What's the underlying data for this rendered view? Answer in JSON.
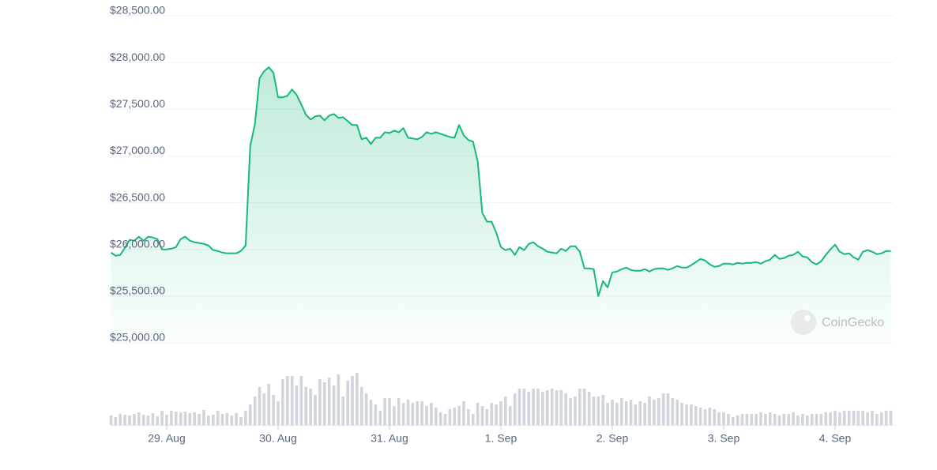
{
  "chart_data": {
    "type": "line",
    "color": "#16b978",
    "volume_color": "#d1d4dc",
    "grid": true,
    "watermark": "CoinGecko",
    "xlim": [
      -12,
      156
    ],
    "ylim": [
      25000,
      28500
    ],
    "volume_lim": [
      0,
      100
    ],
    "yticks": [
      {
        "value": 25000,
        "label": "$25,000.00"
      },
      {
        "value": 25500,
        "label": "$25,500.00"
      },
      {
        "value": 26000,
        "label": "$26,000.00"
      },
      {
        "value": 26500,
        "label": "$26,500.00"
      },
      {
        "value": 27000,
        "label": "$27,000.00"
      },
      {
        "value": 27500,
        "label": "$27,500.00"
      },
      {
        "value": 28000,
        "label": "$28,000.00"
      },
      {
        "value": 28500,
        "label": "$28,500.00"
      }
    ],
    "xticks": [
      {
        "value": 0,
        "label": "29. Aug"
      },
      {
        "value": 24,
        "label": "30. Aug"
      },
      {
        "value": 48,
        "label": "31. Aug"
      },
      {
        "value": 72,
        "label": "1. Sep"
      },
      {
        "value": 96,
        "label": "2. Sep"
      },
      {
        "value": 120,
        "label": "3. Sep"
      },
      {
        "value": 144,
        "label": "4. Sep"
      }
    ],
    "x": [
      -12,
      -11,
      -10,
      -9,
      -8,
      -7,
      -6,
      -5,
      -4,
      -3,
      -2,
      -1,
      0,
      1,
      2,
      3,
      4,
      5,
      6,
      7,
      8,
      9,
      10,
      11,
      12,
      13,
      14,
      15,
      16,
      17,
      18,
      19,
      20,
      21,
      22,
      23,
      24,
      25,
      26,
      27,
      28,
      29,
      30,
      31,
      32,
      33,
      34,
      35,
      36,
      37,
      38,
      39,
      40,
      41,
      42,
      43,
      44,
      45,
      46,
      47,
      48,
      49,
      50,
      51,
      52,
      53,
      54,
      55,
      56,
      57,
      58,
      59,
      60,
      61,
      62,
      63,
      64,
      65,
      66,
      67,
      68,
      69,
      70,
      71,
      72,
      73,
      74,
      75,
      76,
      77,
      78,
      79,
      80,
      81,
      82,
      83,
      84,
      85,
      86,
      87,
      88,
      89,
      90,
      91,
      92,
      93,
      94,
      95,
      96,
      97,
      98,
      99,
      100,
      101,
      102,
      103,
      104,
      105,
      106,
      107,
      108,
      109,
      110,
      111,
      112,
      113,
      114,
      115,
      116,
      117,
      118,
      119,
      120,
      121,
      122,
      123,
      124,
      125,
      126,
      127,
      128,
      129,
      130,
      131,
      132,
      133,
      134,
      135,
      136,
      137,
      138,
      139,
      140,
      141,
      142,
      143,
      144,
      145,
      146,
      147,
      148,
      149,
      150,
      151,
      152,
      153,
      154,
      155,
      156
    ],
    "values": [
      25966,
      25932,
      25941,
      26017,
      26102,
      26093,
      26136,
      26093,
      26136,
      26127,
      26110,
      26000,
      26000,
      26008,
      26025,
      26110,
      26136,
      26093,
      26076,
      26068,
      26059,
      26042,
      25992,
      25983,
      25966,
      25958,
      25958,
      25958,
      25983,
      26042,
      27110,
      27339,
      27831,
      27907,
      27949,
      27890,
      27627,
      27627,
      27644,
      27712,
      27653,
      27551,
      27441,
      27390,
      27424,
      27432,
      27381,
      27432,
      27449,
      27407,
      27415,
      27373,
      27331,
      27331,
      27178,
      27195,
      27127,
      27195,
      27195,
      27254,
      27246,
      27271,
      27254,
      27297,
      27195,
      27187,
      27178,
      27204,
      27254,
      27237,
      27254,
      27237,
      27220,
      27204,
      27195,
      27331,
      27220,
      27170,
      27153,
      26941,
      26390,
      26297,
      26297,
      26178,
      26025,
      25992,
      26008,
      25941,
      26025,
      25992,
      26059,
      26076,
      26034,
      26008,
      25975,
      25966,
      25958,
      26008,
      25983,
      26034,
      26034,
      25975,
      25797,
      25797,
      25788,
      25500,
      25661,
      25593,
      25754,
      25763,
      25788,
      25805,
      25780,
      25771,
      25771,
      25788,
      25763,
      25788,
      25797,
      25797,
      25780,
      25797,
      25822,
      25805,
      25805,
      25831,
      25864,
      25898,
      25881,
      25839,
      25814,
      25822,
      25848,
      25848,
      25839,
      25856,
      25848,
      25856,
      25856,
      25864,
      25848,
      25873,
      25890,
      25941,
      25898,
      25907,
      25932,
      25941,
      25975,
      25924,
      25915,
      25864,
      25839,
      25873,
      25941,
      26000,
      26051,
      25975,
      25949,
      25958,
      25915,
      25890,
      25975,
      25992,
      25975,
      25949,
      25958,
      25983,
      25983
    ],
    "volume": [
      12,
      10,
      14,
      13,
      12,
      14,
      16,
      13,
      12,
      15,
      11,
      18,
      13,
      18,
      17,
      16,
      17,
      15,
      16,
      14,
      19,
      12,
      13,
      18,
      14,
      15,
      12,
      15,
      10,
      18,
      26,
      36,
      48,
      40,
      52,
      38,
      30,
      58,
      62,
      62,
      50,
      62,
      48,
      46,
      38,
      58,
      54,
      60,
      50,
      64,
      36,
      56,
      62,
      66,
      48,
      40,
      32,
      26,
      18,
      34,
      34,
      24,
      34,
      28,
      32,
      28,
      30,
      30,
      24,
      28,
      22,
      16,
      14,
      20,
      22,
      24,
      30,
      20,
      14,
      28,
      24,
      20,
      28,
      26,
      30,
      36,
      24,
      40,
      46,
      46,
      42,
      46,
      46,
      42,
      44,
      46,
      44,
      44,
      40,
      34,
      36,
      46,
      46,
      42,
      36,
      36,
      38,
      28,
      32,
      28,
      34,
      30,
      32,
      26,
      30,
      28,
      36,
      32,
      34,
      40,
      40,
      34,
      32,
      28,
      26,
      26,
      24,
      22,
      20,
      22,
      20,
      16,
      16,
      14,
      10,
      12,
      14,
      14,
      14,
      14,
      16,
      14,
      16,
      14,
      12,
      14,
      14,
      16,
      12,
      14,
      12,
      14,
      14,
      14,
      16,
      16,
      18,
      16,
      18,
      18,
      18,
      18,
      18,
      16,
      18,
      14,
      16,
      18,
      18
    ]
  }
}
